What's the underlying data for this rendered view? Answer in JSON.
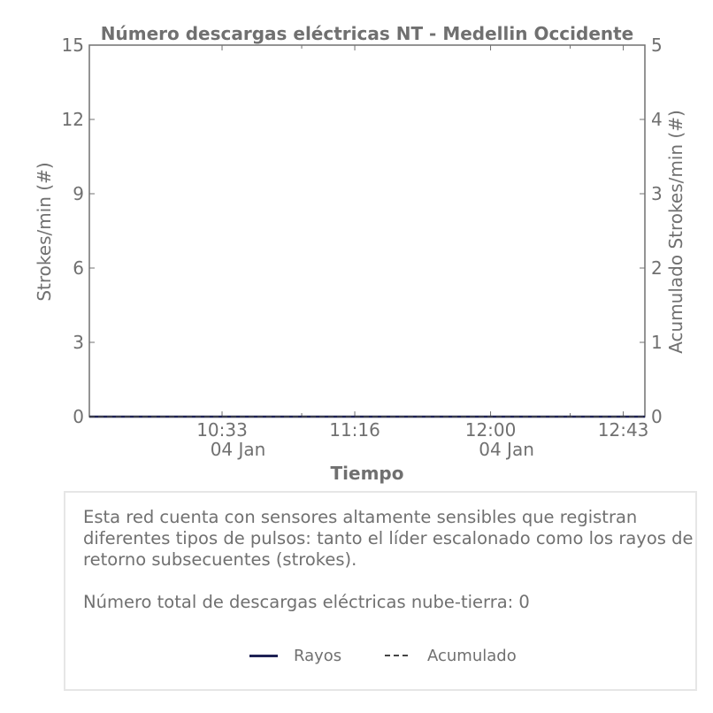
{
  "chart_data": {
    "type": "line",
    "title": "Número descargas eléctricas NT - Medellin Occidente",
    "xlabel": "Tiempo",
    "ylabel": "Strokes/min (#)",
    "y2label": "Acumulado Strokes/min (#)",
    "x_ticks": [
      {
        "time": "10:33",
        "date": "04 Jan"
      },
      {
        "time": "11:16",
        "date": ""
      },
      {
        "time": "12:00",
        "date": "04 Jan"
      },
      {
        "time": "12:43",
        "date": ""
      }
    ],
    "x_range": [
      "09:50",
      "12:50"
    ],
    "ylim": [
      0,
      15
    ],
    "yticks": [
      "0",
      "3",
      "6",
      "9",
      "12",
      "15"
    ],
    "y2lim": [
      0,
      5
    ],
    "y2ticks": [
      "0",
      "1",
      "2",
      "3",
      "4",
      "5"
    ],
    "grid": false,
    "series": [
      {
        "name": "Rayos",
        "axis": "left",
        "style": "solid",
        "color": "#1f2255",
        "x": [
          "09:50",
          "12:50"
        ],
        "values": [
          0,
          0
        ]
      },
      {
        "name": "Acumulado",
        "axis": "right",
        "style": "dashed",
        "color": "#444444",
        "x": [
          "09:50",
          "12:50"
        ],
        "values": [
          0,
          0
        ]
      }
    ]
  },
  "info": {
    "description": "Esta red cuenta con sensores altamente sensibles que registran diferentes tipos de pulsos: tanto el líder escalonado como los rayos de retorno subsecuentes (strokes).",
    "total_label": "Número total de descargas eléctricas nube-tierra: 0"
  },
  "legend": {
    "items": [
      "Rayos",
      "Acumulado"
    ]
  }
}
